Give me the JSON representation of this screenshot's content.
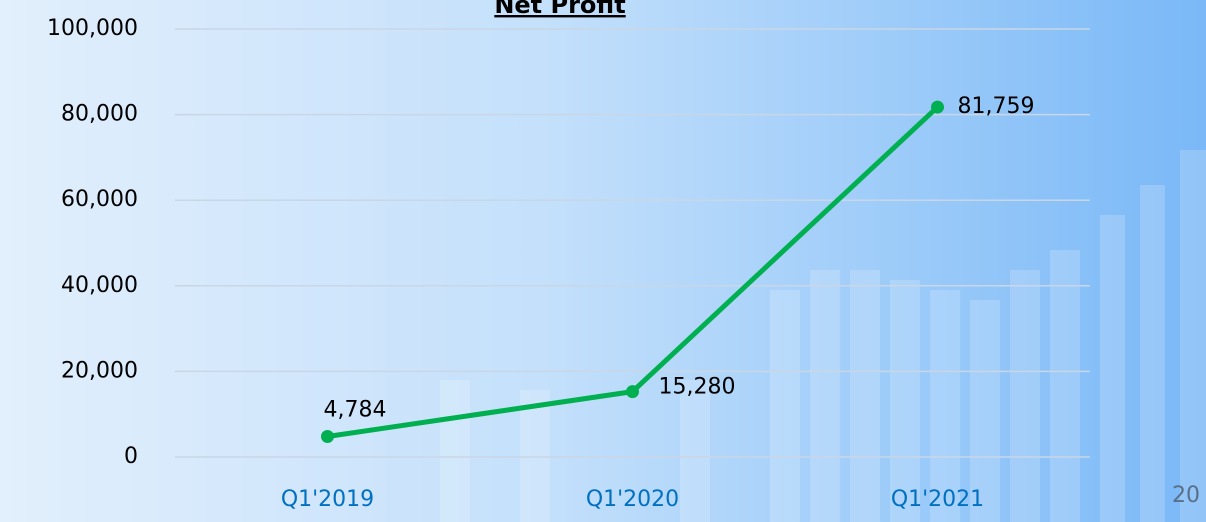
{
  "chart_data": {
    "type": "line",
    "title": "Net Profit",
    "categories": [
      "Q1'2019",
      "Q1'2020",
      "Q1'2021"
    ],
    "series": [
      {
        "name": "Net Profit",
        "color": "#00b050",
        "values": [
          4784,
          15280,
          81759
        ],
        "value_labels": [
          "4,784",
          "15,280",
          "81,759"
        ]
      }
    ],
    "ylim": [
      0,
      100000
    ],
    "yticks": [
      0,
      {
        "value": 20000,
        "label": "20,000"
      },
      {
        "value": 40000,
        "label": "40,000"
      },
      {
        "value": 60000,
        "label": "60,000"
      },
      {
        "value": 80000,
        "label": "80,000"
      },
      {
        "value": 100000,
        "label": "100,000"
      }
    ],
    "grid": true
  },
  "page_number": "20"
}
